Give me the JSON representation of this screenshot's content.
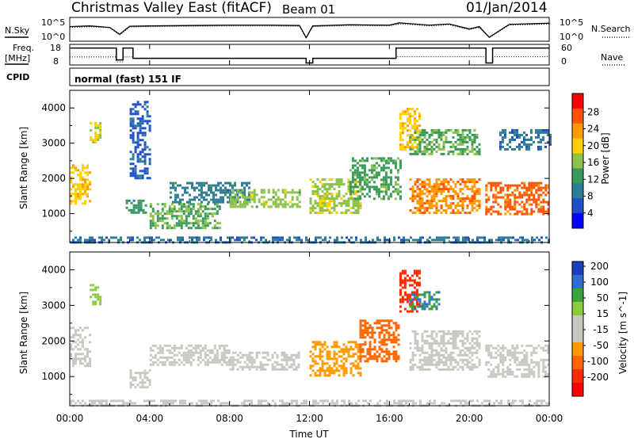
{
  "header": {
    "station": "Christmas Valley East (fitACF)",
    "beam": "Beam 01",
    "date": "01/Jan/2014"
  },
  "labels": {
    "nsky": "N.Sky",
    "nsearch": "N.Search",
    "freq_line1": "Freq.",
    "freq_line2": "[MHz]",
    "nave": "Nave",
    "cpid": "CPID",
    "mode": "normal (fast) 151 IF",
    "noise_tick_top": "10^5",
    "noise_tick_bottom": "10^0",
    "freq_tick_top": "18",
    "freq_tick_bottom": "8",
    "nave_tick_top": "60",
    "nave_tick_bottom": "0"
  },
  "colors": {
    "power_scale": [
      "#0000ff",
      "#1f4fc8",
      "#2e7d99",
      "#3a9a5a",
      "#8cc24a",
      "#ffd000",
      "#ff9900",
      "#ff5500",
      "#ff0000"
    ],
    "velocity_scale": [
      "#1a3fbf",
      "#2f6fd0",
      "#3aa33a",
      "#8ccc3c",
      "#c8c8c0",
      "#c8c8c0",
      "#ff9900",
      "#ff6600",
      "#ff2a00",
      "#ff0000"
    ],
    "ground_scatter": "#c0c0c0"
  },
  "chart_data": [
    {
      "type": "line",
      "name": "noise",
      "x": [
        "00:00",
        "01:00",
        "02:00",
        "02:30",
        "03:00",
        "04:00",
        "06:00",
        "08:00",
        "10:00",
        "11:30",
        "11:50",
        "12:10",
        "14:00",
        "16:00",
        "16:30",
        "18:00",
        "19:00",
        "20:00",
        "20:30",
        "21:00",
        "22:00",
        "24:00"
      ],
      "series": [
        {
          "name": "N.Sky",
          "values": [
            3.2,
            3.4,
            3.0,
            1.2,
            3.3,
            3.4,
            3.5,
            3.6,
            3.6,
            3.5,
            0.3,
            3.4,
            3.7,
            3.6,
            4.2,
            3.6,
            3.9,
            2.6,
            3.2,
            0.4,
            3.8,
            4.1
          ]
        },
        {
          "name": "N.Search",
          "values": [
            3.0,
            3.2,
            2.9,
            1.0,
            3.1,
            3.2,
            3.3,
            3.4,
            3.4,
            3.3,
            0.2,
            3.2,
            3.5,
            3.4,
            3.9,
            3.4,
            3.7,
            2.4,
            3.0,
            0.3,
            3.6,
            3.9
          ]
        }
      ],
      "yticks": [
        "10^0",
        "10^5"
      ],
      "ylim": [
        0,
        5
      ]
    },
    {
      "type": "line",
      "name": "frequency",
      "x": [
        "00:00",
        "02:00",
        "02:20",
        "02:40",
        "03:10",
        "11:30",
        "11:50",
        "12:10",
        "16:00",
        "16:20",
        "20:30",
        "20:50",
        "21:10",
        "24:00"
      ],
      "series": [
        {
          "name": "Freq.",
          "values": [
            16.8,
            16.8,
            10.0,
            16.8,
            10.9,
            10.9,
            8.2,
            10.9,
            10.9,
            16.8,
            16.8,
            8.2,
            16.8,
            16.8
          ]
        },
        {
          "name": "Nave",
          "values": [
            22,
            22,
            5,
            22,
            18,
            18,
            2,
            18,
            18,
            23,
            23,
            2,
            23,
            23
          ]
        }
      ],
      "ylim_left": [
        8,
        18
      ],
      "ylim_right": [
        0,
        60
      ],
      "yticks_left": [
        "8",
        "18"
      ],
      "yticks_right": [
        "0",
        "60"
      ]
    },
    {
      "type": "heatmap",
      "name": "power",
      "xlabel": "",
      "ylabel": "Slant Range [km]",
      "xlim": [
        "00:00",
        "24:00"
      ],
      "ylim": [
        180,
        4500
      ],
      "yticks": [
        1000,
        2000,
        3000,
        4000
      ],
      "colorbar_label": "Power [dB]",
      "colorbar_ticks": [
        4,
        8,
        12,
        16,
        20,
        24,
        28
      ],
      "colorbar_range": [
        0,
        32
      ],
      "regions": [
        {
          "t": [
            0.0,
            1.0
          ],
          "r": [
            1300,
            2400
          ],
          "value": 20
        },
        {
          "t": [
            1.0,
            1.5
          ],
          "r": [
            3000,
            3600
          ],
          "value": 18
        },
        {
          "t": [
            2.8,
            3.8
          ],
          "r": [
            1000,
            1400
          ],
          "value": 12
        },
        {
          "t": [
            3.0,
            4.0
          ],
          "r": [
            2000,
            4200
          ],
          "value": 6
        },
        {
          "t": [
            4.0,
            7.5
          ],
          "r": [
            600,
            1300
          ],
          "value": 14
        },
        {
          "t": [
            5.0,
            9.0
          ],
          "r": [
            1300,
            1900
          ],
          "value": 9
        },
        {
          "t": [
            8.0,
            11.5
          ],
          "r": [
            1200,
            1700
          ],
          "value": 16
        },
        {
          "t": [
            12.0,
            14.5
          ],
          "r": [
            1000,
            2000
          ],
          "value": 17
        },
        {
          "t": [
            14.0,
            16.5
          ],
          "r": [
            1400,
            2600
          ],
          "value": 13
        },
        {
          "t": [
            16.5,
            17.5
          ],
          "r": [
            2800,
            4000
          ],
          "value": 20
        },
        {
          "t": [
            17.0,
            20.5
          ],
          "r": [
            2700,
            3400
          ],
          "value": 14
        },
        {
          "t": [
            17.0,
            20.5
          ],
          "r": [
            1000,
            2000
          ],
          "value": 24
        },
        {
          "t": [
            20.8,
            24.0
          ],
          "r": [
            1000,
            1900
          ],
          "value": 26
        },
        {
          "t": [
            21.5,
            24.0
          ],
          "r": [
            2800,
            3400
          ],
          "value": 8
        },
        {
          "t": [
            0.0,
            24.0
          ],
          "r": [
            200,
            350
          ],
          "value": 8
        }
      ]
    },
    {
      "type": "heatmap",
      "name": "velocity",
      "xlabel": "Time UT",
      "ylabel": "Slant Range [km]",
      "xlim": [
        "00:00",
        "24:00"
      ],
      "ylim": [
        180,
        4500
      ],
      "xticks": [
        "00:00",
        "04:00",
        "08:00",
        "12:00",
        "16:00",
        "20:00",
        "00:00"
      ],
      "yticks": [
        1000,
        2000,
        3000,
        4000
      ],
      "colorbar_label": "Velocity [m s^-1]",
      "colorbar_ticks": [
        200,
        100,
        50,
        15,
        -15,
        -50,
        -100,
        -200
      ],
      "colorbar_range": [
        -250,
        250
      ],
      "regions": [
        {
          "t": [
            0.0,
            1.0
          ],
          "r": [
            1300,
            2400
          ],
          "value": 0
        },
        {
          "t": [
            1.0,
            1.5
          ],
          "r": [
            3000,
            3600
          ],
          "value": 80
        },
        {
          "t": [
            3.0,
            4.0
          ],
          "r": [
            700,
            1200
          ],
          "value": 0
        },
        {
          "t": [
            4.0,
            8.0
          ],
          "r": [
            1300,
            1900
          ],
          "value": 30
        },
        {
          "t": [
            8.0,
            9.5
          ],
          "r": [
            1200,
            1700
          ],
          "value": 30
        },
        {
          "t": [
            9.5,
            11.5
          ],
          "r": [
            1200,
            1700
          ],
          "value": -40
        },
        {
          "t": [
            12.0,
            14.5
          ],
          "r": [
            1000,
            2000
          ],
          "value": -60
        },
        {
          "t": [
            14.5,
            16.5
          ],
          "r": [
            1400,
            2600
          ],
          "value": -110
        },
        {
          "t": [
            16.5,
            17.5
          ],
          "r": [
            2800,
            4000
          ],
          "value": -180
        },
        {
          "t": [
            17.0,
            18.5
          ],
          "r": [
            2900,
            3400
          ],
          "value": 150
        },
        {
          "t": [
            17.0,
            20.5
          ],
          "r": [
            1200,
            2300
          ],
          "value": 0
        },
        {
          "t": [
            20.8,
            24.0
          ],
          "r": [
            1000,
            1900
          ],
          "value": 0
        },
        {
          "t": [
            0.0,
            24.0
          ],
          "r": [
            200,
            350
          ],
          "value": 40
        }
      ]
    }
  ],
  "axes": {
    "time_label": "Time UT",
    "range_label": "Slant Range [km]",
    "power_label": "Power [dB]",
    "velocity_label": "Velocity [m s^-1]"
  }
}
